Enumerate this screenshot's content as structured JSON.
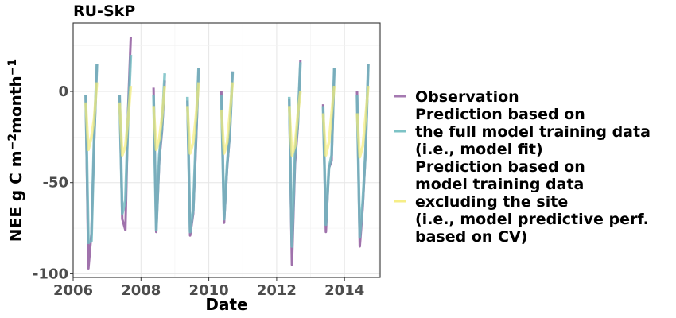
{
  "chart_data": {
    "type": "line",
    "title": "RU-SkP",
    "xlabel": "Date",
    "ylabel": "NEE g C m",
    "ylabel_sup1": "−2",
    "ylabel_mid": "month",
    "ylabel_sup2": "−1",
    "xlim": [
      2006.0,
      2015.05
    ],
    "ylim": [
      -102,
      37.5
    ],
    "x_ticks": [
      {
        "value": 2006,
        "label": "2006"
      },
      {
        "value": 2008,
        "label": "2008"
      },
      {
        "value": 2010,
        "label": "2010"
      },
      {
        "value": 2012,
        "label": "2012"
      },
      {
        "value": 2014,
        "label": "2014"
      }
    ],
    "y_ticks": [
      {
        "value": 0,
        "label": "0"
      },
      {
        "value": -50,
        "label": "-50"
      },
      {
        "value": -100,
        "label": "-100"
      }
    ],
    "grid": true,
    "legend_position": "right",
    "series": [
      {
        "name": "Observation",
        "color": "#9b6aa8",
        "segments": [
          {
            "x": [
              2006.37,
              2006.45,
              2006.54,
              2006.62,
              2006.7
            ],
            "y": [
              -2,
              -97,
              -78,
              -28,
              15
            ]
          },
          {
            "x": [
              2007.37,
              2007.45,
              2007.54,
              2007.62,
              2007.7
            ],
            "y": [
              -2,
              -70,
              -76,
              -10,
              30
            ]
          },
          {
            "x": [
              2008.37,
              2008.45,
              2008.54,
              2008.62,
              2008.7
            ],
            "y": [
              2,
              -77,
              -38,
              -22,
              6
            ]
          },
          {
            "x": [
              2009.37,
              2009.45,
              2009.54,
              2009.62,
              2009.7
            ],
            "y": [
              -5,
              -79,
              -67,
              -30,
              13
            ]
          },
          {
            "x": [
              2010.37,
              2010.45,
              2010.54,
              2010.62,
              2010.7
            ],
            "y": [
              0,
              -72,
              -42,
              -23,
              11
            ]
          },
          {
            "x": [
              2012.37,
              2012.45,
              2012.54,
              2012.62,
              2012.7
            ],
            "y": [
              -4,
              -95,
              -40,
              -20,
              17
            ]
          },
          {
            "x": [
              2013.37,
              2013.45,
              2013.54,
              2013.62,
              2013.7
            ],
            "y": [
              -7,
              -77,
              -42,
              -38,
              13
            ]
          },
          {
            "x": [
              2014.37,
              2014.45,
              2014.54,
              2014.62,
              2014.7
            ],
            "y": [
              0,
              -85,
              -63,
              -33,
              15
            ]
          }
        ]
      },
      {
        "name": "Prediction based on the full model training data (i.e., model fit)",
        "color": "#6fbcc0",
        "segments": [
          {
            "x": [
              2006.37,
              2006.45,
              2006.54,
              2006.62,
              2006.7
            ],
            "y": [
              -2,
              -83,
              -82,
              -25,
              15
            ]
          },
          {
            "x": [
              2007.37,
              2007.45,
              2007.54,
              2007.62,
              2007.7
            ],
            "y": [
              -2,
              -67,
              -60,
              -15,
              20
            ]
          },
          {
            "x": [
              2008.37,
              2008.45,
              2008.54,
              2008.62,
              2008.7
            ],
            "y": [
              -2,
              -76,
              -35,
              -20,
              10
            ]
          },
          {
            "x": [
              2009.37,
              2009.45,
              2009.54,
              2009.62,
              2009.7
            ],
            "y": [
              -3,
              -77,
              -65,
              -25,
              13
            ]
          },
          {
            "x": [
              2010.37,
              2010.45,
              2010.54,
              2010.62,
              2010.7
            ],
            "y": [
              -2,
              -70,
              -40,
              -22,
              11
            ]
          },
          {
            "x": [
              2012.37,
              2012.45,
              2012.54,
              2012.62,
              2012.7
            ],
            "y": [
              -3,
              -85,
              -35,
              -18,
              16
            ]
          },
          {
            "x": [
              2013.37,
              2013.45,
              2013.54,
              2013.62,
              2013.7
            ],
            "y": [
              -8,
              -73,
              -42,
              -35,
              13
            ]
          },
          {
            "x": [
              2014.37,
              2014.45,
              2014.54,
              2014.62,
              2014.7
            ],
            "y": [
              -2,
              -80,
              -60,
              -32,
              15
            ]
          }
        ]
      },
      {
        "name": "Prediction based on model training data excluding the site (i.e., model predictive perf. based on CV)",
        "color": "#f5ec7a",
        "segments": [
          {
            "x": [
              2006.37,
              2006.45,
              2006.54,
              2006.62,
              2006.7
            ],
            "y": [
              -6,
              -32,
              -25,
              -15,
              5
            ]
          },
          {
            "x": [
              2007.37,
              2007.45,
              2007.54,
              2007.62,
              2007.7
            ],
            "y": [
              -6,
              -35,
              -30,
              -15,
              3
            ]
          },
          {
            "x": [
              2008.37,
              2008.45,
              2008.54,
              2008.62,
              2008.7
            ],
            "y": [
              -8,
              -32,
              -26,
              -14,
              3
            ]
          },
          {
            "x": [
              2009.37,
              2009.45,
              2009.54,
              2009.62,
              2009.7
            ],
            "y": [
              -8,
              -34,
              -28,
              -14,
              5
            ]
          },
          {
            "x": [
              2010.37,
              2010.45,
              2010.54,
              2010.62,
              2010.7
            ],
            "y": [
              -10,
              -34,
              -28,
              -12,
              5
            ]
          },
          {
            "x": [
              2012.37,
              2012.45,
              2012.54,
              2012.62,
              2012.7
            ],
            "y": [
              -8,
              -35,
              -30,
              -13,
              0
            ]
          },
          {
            "x": [
              2013.37,
              2013.45,
              2013.54,
              2013.62,
              2013.7
            ],
            "y": [
              -12,
              -35,
              -28,
              -12,
              3
            ]
          },
          {
            "x": [
              2014.37,
              2014.45,
              2014.54,
              2014.62,
              2014.7
            ],
            "y": [
              -12,
              -36,
              -30,
              -14,
              3
            ]
          }
        ]
      }
    ],
    "legend": [
      {
        "lines": [
          "Observation"
        ],
        "color": "#9b6aa8"
      },
      {
        "lines": [
          "Prediction based on",
          "the full model training data",
          "(i.e., model fit)"
        ],
        "color": "#6fbcc0"
      },
      {
        "lines": [
          "Prediction based on",
          "model training data",
          "excluding the site",
          "(i.e., model predictive perf.",
          " based on CV)"
        ],
        "color": "#f5ec7a"
      }
    ]
  }
}
